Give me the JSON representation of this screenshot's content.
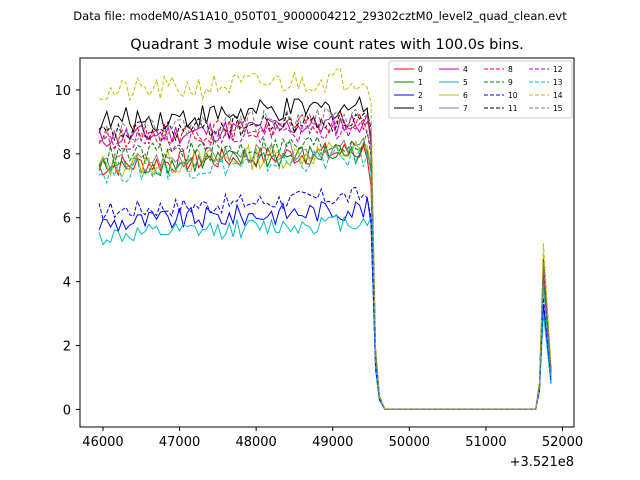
{
  "chart_data": {
    "type": "line",
    "suptitle": "Data file: modeM0/AS1A10_050T01_9000004212_29302cztM0_level2_quad_clean.evt",
    "title": "Quadrant 3 module wise count rates with 100.0s bins.",
    "xlabel": "",
    "ylabel": "",
    "x_offset_label": "+3.521e8",
    "xlim": [
      45700,
      52150
    ],
    "ylim": [
      -0.55,
      11.0
    ],
    "xticks": [
      46000,
      47000,
      48000,
      49000,
      50000,
      51000,
      52000
    ],
    "xtick_labels": [
      "46000",
      "47000",
      "48000",
      "49000",
      "50000",
      "51000",
      "52000"
    ],
    "yticks": [
      0,
      2,
      4,
      6,
      8,
      10
    ],
    "ytick_labels": [
      "0",
      "2",
      "4",
      "6",
      "8",
      "10"
    ],
    "grid": false,
    "legend_position": "top-right",
    "x_start": 45950,
    "x_step": 50,
    "flat_until": 51650,
    "series": [
      {
        "name": "0",
        "color": "#ff0000",
        "dash": "solid",
        "level": 7.6,
        "amp": 0.35,
        "end": [
          7.0,
          1.5,
          0.4
        ],
        "peak": 4.3,
        "tail": 1.0
      },
      {
        "name": "1",
        "color": "#008000",
        "dash": "solid",
        "level": 7.55,
        "amp": 0.35,
        "end": [
          7.5,
          1.6,
          0.35
        ],
        "peak": 4.0,
        "tail": 1.1
      },
      {
        "name": "2",
        "color": "#0000ff",
        "dash": "solid",
        "level": 5.8,
        "amp": 0.35,
        "end": [
          5.8,
          1.3,
          0.3
        ],
        "peak": 3.3,
        "tail": 0.8
      },
      {
        "name": "3",
        "color": "#000000",
        "dash": "solid",
        "level": 9.0,
        "amp": 0.4,
        "end": [
          8.4,
          1.8,
          0.4
        ],
        "peak": 4.6,
        "tail": 1.2
      },
      {
        "name": "4",
        "color": "#bf00bf",
        "dash": "solid",
        "level": 8.5,
        "amp": 0.35,
        "end": [
          8.3,
          1.7,
          0.4
        ],
        "peak": 4.4,
        "tail": 1.1
      },
      {
        "name": "5",
        "color": "#00bfbf",
        "dash": "solid",
        "level": 5.4,
        "amp": 0.3,
        "end": [
          6.0,
          1.2,
          0.3
        ],
        "peak": 3.0,
        "tail": 0.8
      },
      {
        "name": "6",
        "color": "#bfbf00",
        "dash": "solid",
        "level": 7.6,
        "amp": 0.4,
        "end": [
          7.6,
          1.6,
          0.4
        ],
        "peak": 4.8,
        "tail": 1.3
      },
      {
        "name": "7",
        "color": "#808080",
        "dash": "solid",
        "level": 7.7,
        "amp": 0.3,
        "end": [
          7.6,
          1.6,
          0.4
        ],
        "peak": 4.2,
        "tail": 1.1
      },
      {
        "name": "8",
        "color": "#ff0000",
        "dash": "dashed",
        "level": 8.5,
        "amp": 0.35,
        "end": [
          8.6,
          1.7,
          0.4
        ],
        "peak": 4.5,
        "tail": 1.2
      },
      {
        "name": "9",
        "color": "#008000",
        "dash": "dashed",
        "level": 7.9,
        "amp": 0.35,
        "end": [
          7.9,
          1.6,
          0.35
        ],
        "peak": 4.1,
        "tail": 1.1
      },
      {
        "name": "10",
        "color": "#0000ff",
        "dash": "dashed",
        "level": 6.2,
        "amp": 0.3,
        "end": [
          6.0,
          1.3,
          0.3
        ],
        "peak": 3.5,
        "tail": 0.9
      },
      {
        "name": "11",
        "color": "#000000",
        "dash": "dashed",
        "level": 8.6,
        "amp": 0.35,
        "end": [
          8.8,
          1.8,
          0.4
        ],
        "peak": 4.7,
        "tail": 1.2
      },
      {
        "name": "12",
        "color": "#bf00bf",
        "dash": "dashed",
        "level": 8.3,
        "amp": 0.35,
        "end": [
          8.2,
          1.7,
          0.4
        ],
        "peak": 4.4,
        "tail": 1.1
      },
      {
        "name": "13",
        "color": "#00bfbf",
        "dash": "dashed",
        "level": 7.4,
        "amp": 0.35,
        "end": [
          7.4,
          1.5,
          0.35
        ],
        "peak": 3.9,
        "tail": 1.0
      },
      {
        "name": "14",
        "color": "#bfbf00",
        "dash": "dashed",
        "level": 9.9,
        "amp": 0.4,
        "end": [
          9.6,
          2.0,
          0.45
        ],
        "peak": 5.2,
        "tail": 1.4
      },
      {
        "name": "15",
        "color": "#808080",
        "dash": "dashed",
        "level": 8.7,
        "amp": 0.35,
        "end": [
          8.7,
          1.8,
          0.4
        ],
        "peak": 4.6,
        "tail": 1.2
      }
    ]
  }
}
